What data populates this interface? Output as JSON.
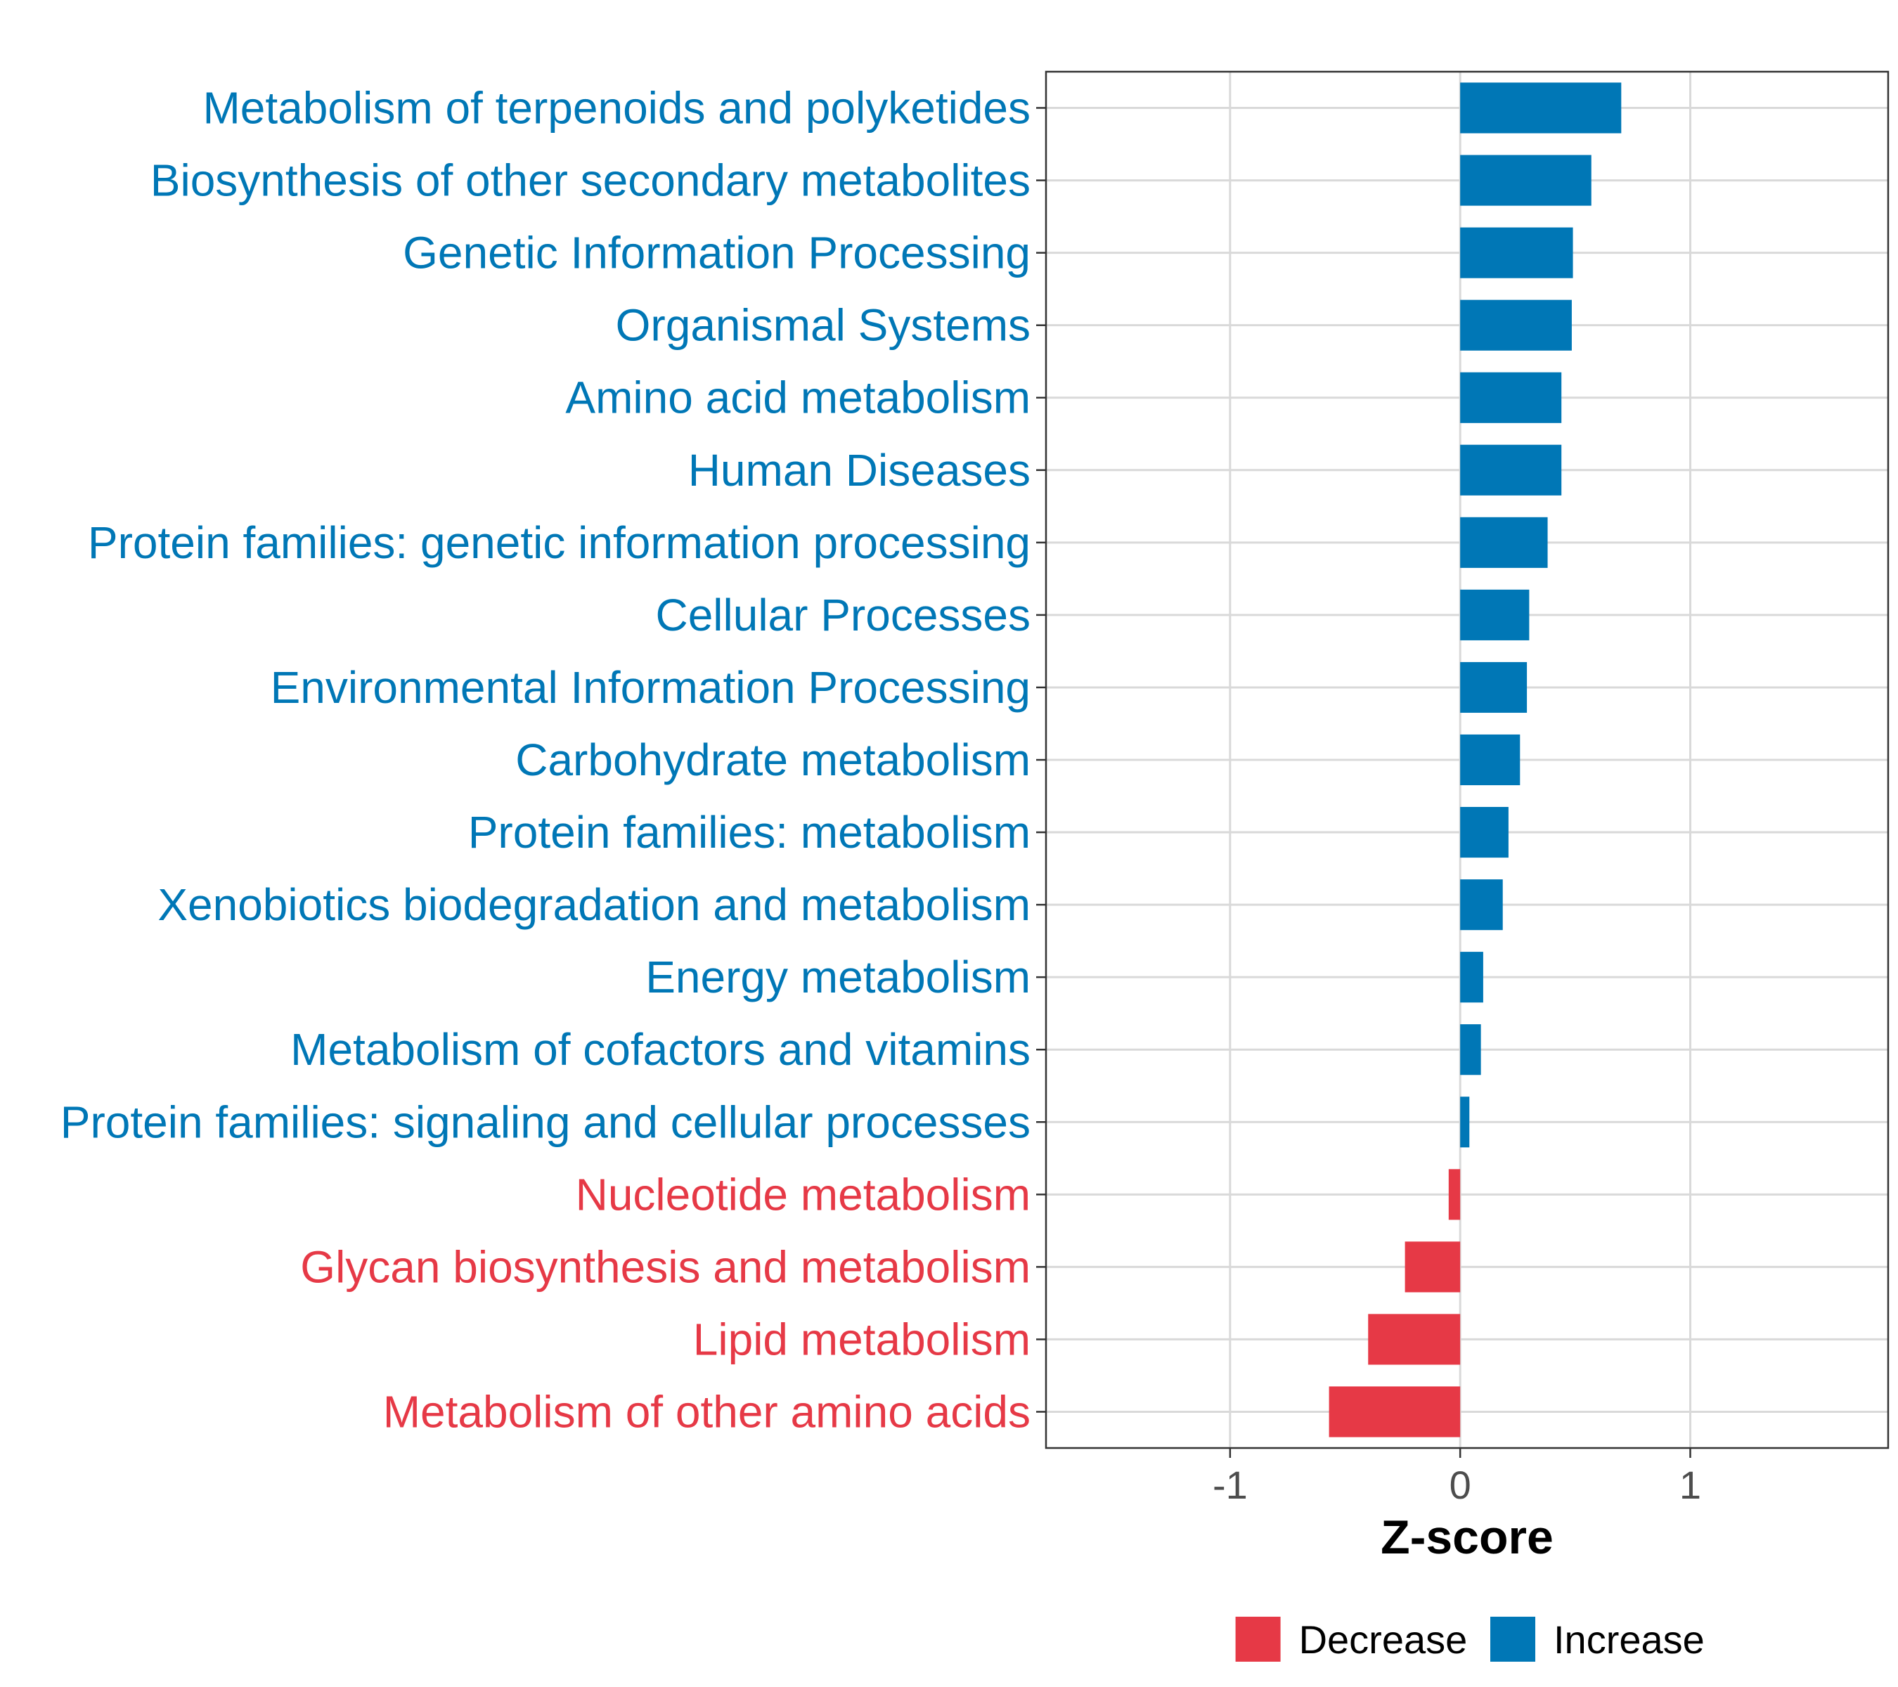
{
  "chart_data": {
    "type": "bar",
    "orientation": "horizontal",
    "title": "",
    "xlabel": "Z-score",
    "ylabel": "",
    "xlim": [
      -1.8,
      1.86
    ],
    "xticks": [
      -1,
      0,
      1
    ],
    "xtick_labels": [
      "-1",
      "0",
      "1"
    ],
    "grid": true,
    "legend": {
      "position": "bottom",
      "items": [
        {
          "label": "Decrease",
          "color": "#E63946"
        },
        {
          "label": "Increase",
          "color": "#0077B6"
        }
      ]
    },
    "categories": [
      "Metabolism of terpenoids and polyketides",
      "Biosynthesis of other secondary metabolites",
      "Genetic Information Processing",
      "Organismal Systems",
      "Amino acid metabolism",
      "Human Diseases",
      "Protein families: genetic information processing",
      "Cellular Processes",
      "Environmental Information Processing",
      "Carbohydrate metabolism",
      "Protein families: metabolism",
      "Xenobiotics biodegradation and metabolism",
      "Energy metabolism",
      "Metabolism of cofactors and vitamins",
      "Protein families: signaling and cellular processes",
      "Nucleotide metabolism",
      "Glycan biosynthesis and metabolism",
      "Lipid metabolism",
      "Metabolism of other amino acids"
    ],
    "values": [
      0.7,
      0.57,
      0.49,
      0.485,
      0.44,
      0.44,
      0.38,
      0.3,
      0.29,
      0.26,
      0.21,
      0.185,
      0.1,
      0.09,
      0.04,
      -0.05,
      -0.24,
      -0.4,
      -0.57
    ],
    "groups": [
      "Increase",
      "Increase",
      "Increase",
      "Increase",
      "Increase",
      "Increase",
      "Increase",
      "Increase",
      "Increase",
      "Increase",
      "Increase",
      "Increase",
      "Increase",
      "Increase",
      "Increase",
      "Decrease",
      "Decrease",
      "Decrease",
      "Decrease"
    ]
  }
}
